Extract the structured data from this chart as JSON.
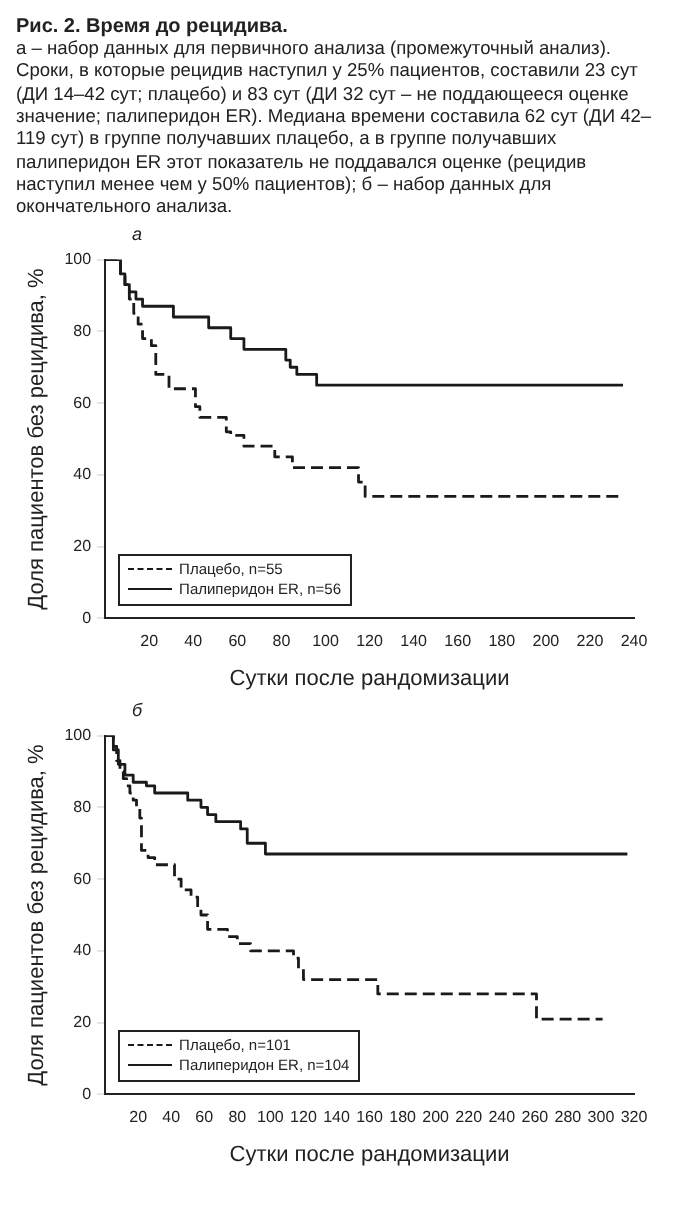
{
  "chart_data": [
    {
      "type": "step",
      "title": "Рис. 2. Время до рецидива.",
      "subtitle": "а – набор данных для первичного анализа (промежуточный анализ). Сроки, в которые рецидив наступил у 25% пациентов, составили 23 сут (ДИ 14–42 сут; плацебо) и 83 сут (ДИ 32 сут – не поддающееся оценке значение; палиперидон ER). Медиана времени составила 62 сут (ДИ 42–119 сут) в группе получавших плацебо, а в группе получавших палиперидон ER этот показатель не поддавался оценке (рецидив наступил менее чем у 50% пациентов); б – набор данных для окончательного анализа.",
      "annotations": [
        "а"
      ],
      "xlabel": "Сутки после рандомизации",
      "ylabel": "Доля пациентов без рецидива, %",
      "xlim": [
        0,
        240
      ],
      "xticks": [
        20,
        40,
        60,
        80,
        100,
        120,
        140,
        160,
        180,
        200,
        220,
        240
      ],
      "ylim": [
        0,
        100
      ],
      "yticks": [
        0,
        20,
        40,
        60,
        80,
        100
      ],
      "grid": false,
      "legend": "bottom left",
      "marker": "none",
      "series": [
        {
          "name": "Плацебо, n=55",
          "color": "#1a1a1a",
          "line_style": "dashed",
          "x": [
            0,
            7,
            9,
            11,
            13,
            15,
            17,
            21,
            23,
            29,
            41,
            43,
            55,
            57,
            63,
            77,
            85,
            115,
            118,
            233
          ],
          "values": [
            100,
            96,
            93,
            89,
            85,
            82,
            78,
            76,
            68,
            64,
            59,
            56,
            52,
            51,
            48,
            45,
            42,
            38,
            34,
            34
          ]
        },
        {
          "name": "Палиперидон ER, n=56",
          "color": "#1a1a1a",
          "line_style": "solid",
          "x": [
            0,
            7,
            9,
            11,
            14,
            17,
            31,
            47,
            57,
            63,
            82,
            84,
            87,
            96,
            235
          ],
          "values": [
            100,
            96,
            93,
            91,
            89,
            87,
            84,
            81,
            78,
            75,
            72,
            70,
            68,
            65,
            65
          ]
        }
      ]
    },
    {
      "type": "step",
      "annotations": [
        "б"
      ],
      "xlabel": "Сутки после рандомизации",
      "ylabel": "Доля пациентов без рецидива, %",
      "xlim": [
        0,
        320
      ],
      "xticks": [
        20,
        40,
        60,
        80,
        100,
        120,
        140,
        160,
        180,
        200,
        220,
        240,
        260,
        280,
        300,
        320
      ],
      "ylim": [
        0,
        100
      ],
      "yticks": [
        0,
        20,
        40,
        60,
        80,
        100
      ],
      "grid": false,
      "legend": "bottom left",
      "marker": "none",
      "series": [
        {
          "name": "Плацебо, n=101",
          "color": "#1a1a1a",
          "line_style": "dashed",
          "x": [
            0,
            5,
            7,
            9,
            11,
            13,
            15,
            17,
            19,
            21,
            22,
            26,
            30,
            42,
            46,
            52,
            56,
            58,
            62,
            74,
            80,
            88,
            114,
            117,
            120,
            165,
            261,
            301
          ],
          "values": [
            100,
            97,
            93,
            90,
            88,
            86,
            84,
            82,
            80,
            77,
            68,
            66,
            64,
            60,
            57,
            55,
            52,
            50,
            46,
            44,
            42,
            40,
            38,
            35,
            32,
            28,
            21,
            21
          ]
        },
        {
          "name": "Палиперидон ER, n=104",
          "color": "#1a1a1a",
          "line_style": "solid",
          "x": [
            0,
            5,
            8,
            12,
            17,
            25,
            30,
            50,
            58,
            62,
            67,
            82,
            86,
            97,
            316
          ],
          "values": [
            100,
            96,
            92,
            89,
            87,
            86,
            84,
            82,
            80,
            78,
            76,
            74,
            70,
            67,
            67
          ]
        }
      ]
    }
  ]
}
